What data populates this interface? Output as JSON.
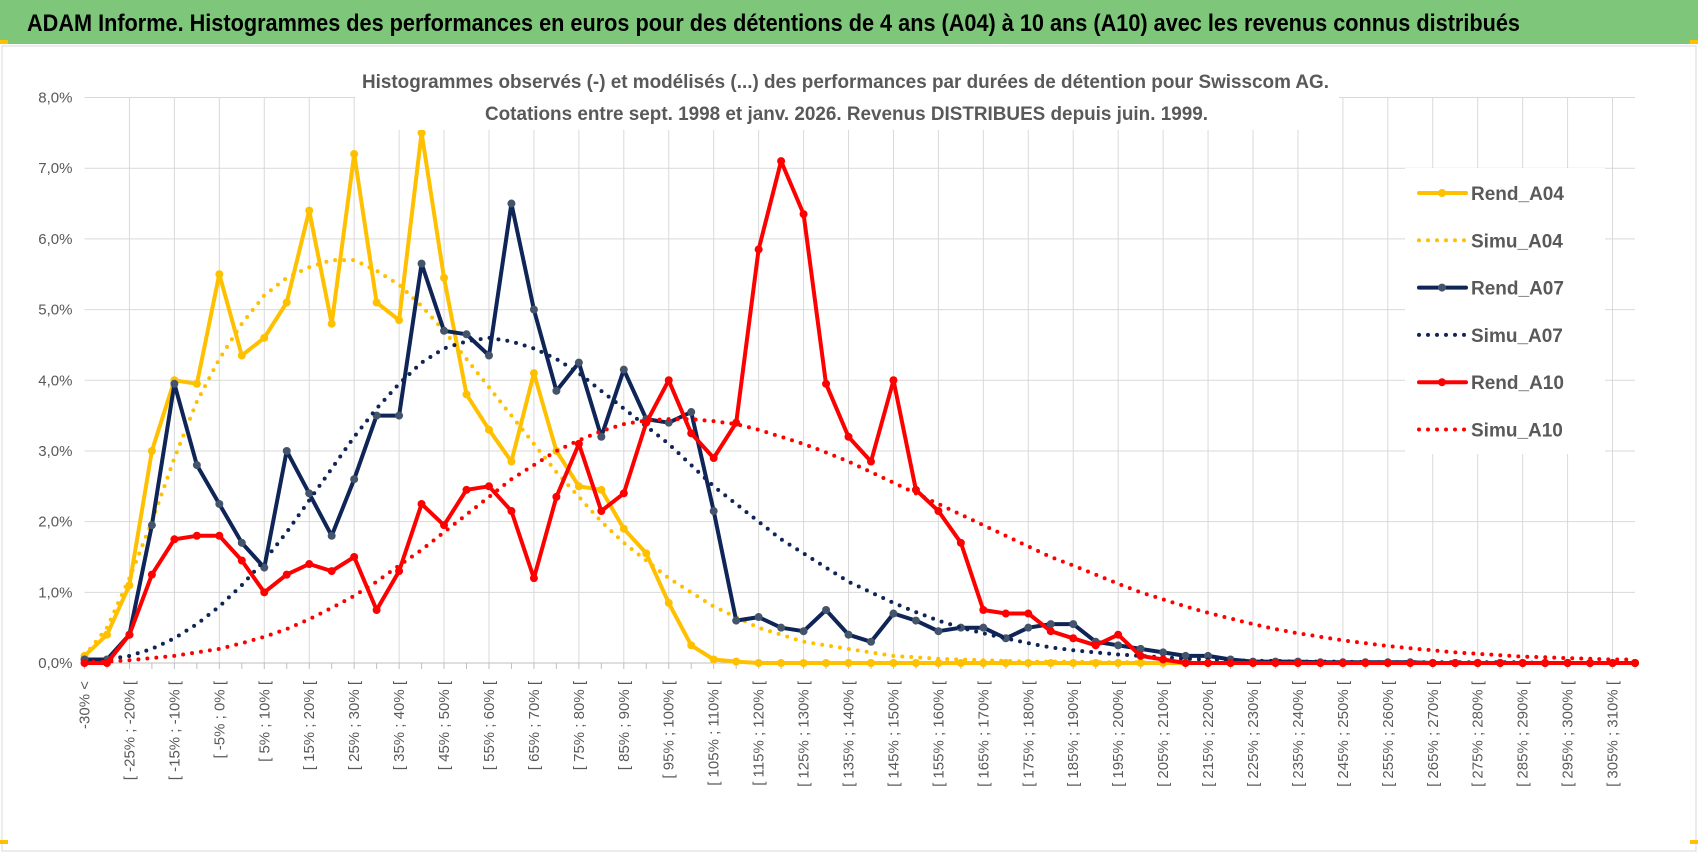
{
  "header": {
    "title": "ADAM Informe. Histogrammes des performances en euros pour des détentions de 4 ans (A04) à 10 ans (A10) avec les revenus connus distribués"
  },
  "chart_data": {
    "type": "line",
    "title": "Histogrammes observés (-) et modélisés (...) des performances par durées de détention pour Swisscom AG.",
    "subtitle": "Cotations entre sept. 1998 et janv. 2026. Revenus DISTRIBUES depuis juin. 1999.",
    "categories": [
      "-30% <",
      null,
      "[ -25% ; -20% [",
      null,
      "[ -15% ; -10% [",
      null,
      "[ -5% ; 0% [",
      null,
      "[ 5% ; 10% [",
      null,
      "[ 15% ; 20% [",
      null,
      "[ 25% ; 30% [",
      null,
      "[ 35% ; 40% [",
      null,
      "[ 45% ; 50% [",
      null,
      "[ 55% ; 60% [",
      null,
      "[ 65% ; 70% [",
      null,
      "[ 75% ; 80% [",
      null,
      "[ 85% ; 90% [",
      null,
      "[ 95% ; 100% [",
      null,
      "[ 105% ; 110% [",
      null,
      "[ 115% ; 120% [",
      null,
      "[ 125% ; 130% [",
      null,
      "[ 135% ; 140% [",
      null,
      "[ 145% ; 150% [",
      null,
      "[ 155% ; 160% [",
      null,
      "[ 165% ; 170% [",
      null,
      "[ 175% ; 180% [",
      null,
      "[ 185% ; 190% [",
      null,
      "[ 195% ; 200% [",
      null,
      "[ 205% ; 210% [",
      null,
      "[ 215% ; 220% [",
      null,
      "[ 225% ; 230% [",
      null,
      "[ 235% ; 240% [",
      null,
      "[ 245% ; 250% [",
      null,
      "[ 255% ; 260% [",
      null,
      "[ 265% ; 270% [",
      null,
      "[ 275% ; 280% [",
      null,
      "[ 285% ; 290% [",
      null,
      "[ 295% ; 300% [",
      null,
      "[ 305% ; 310% [",
      null
    ],
    "ylim": [
      0,
      8
    ],
    "yticks": [
      {
        "value": 0,
        "label": "0,0%"
      },
      {
        "value": 1,
        "label": "1,0%"
      },
      {
        "value": 2,
        "label": "2,0%"
      },
      {
        "value": 3,
        "label": "3,0%"
      },
      {
        "value": 4,
        "label": "4,0%"
      },
      {
        "value": 5,
        "label": "5,0%"
      },
      {
        "value": 6,
        "label": "6,0%"
      },
      {
        "value": 7,
        "label": "7,0%"
      },
      {
        "value": 8,
        "label": "8,0%"
      }
    ],
    "grid": true,
    "legend": "right",
    "series": [
      {
        "name": "Rend_A04",
        "color": "#ffc000",
        "style": "solid",
        "values": [
          0.1,
          0.4,
          1.1,
          3.0,
          4.0,
          3.95,
          5.5,
          4.35,
          4.6,
          5.1,
          6.4,
          4.8,
          7.2,
          5.1,
          4.85,
          7.5,
          5.45,
          3.8,
          3.3,
          2.85,
          4.1,
          3.0,
          2.5,
          2.45,
          1.9,
          1.55,
          0.85,
          0.25,
          0.05,
          0.02,
          0,
          0,
          0,
          0,
          0,
          0,
          0,
          0,
          0,
          0,
          0,
          0,
          0,
          0,
          0,
          0,
          0,
          0,
          0,
          0,
          0,
          0,
          0,
          0,
          0,
          0,
          0,
          0,
          0,
          0,
          0,
          0,
          0,
          0,
          0,
          0,
          0,
          0,
          0,
          0
        ]
      },
      {
        "name": "Simu_A04",
        "color": "#ffc000",
        "style": "dotted",
        "values": [
          0.1,
          0.5,
          1.2,
          2.0,
          2.9,
          3.7,
          4.3,
          4.8,
          5.2,
          5.45,
          5.6,
          5.7,
          5.7,
          5.55,
          5.35,
          5.05,
          4.7,
          4.3,
          3.9,
          3.5,
          3.1,
          2.7,
          2.35,
          2.0,
          1.7,
          1.45,
          1.2,
          1.0,
          0.8,
          0.65,
          0.5,
          0.4,
          0.3,
          0.25,
          0.2,
          0.15,
          0.1,
          0.08,
          0.06,
          0.05,
          0.04,
          0.03,
          0.02,
          0.02,
          0.02,
          0.01,
          0.01,
          0.01,
          0,
          0,
          0,
          0,
          0,
          0,
          0,
          0,
          0,
          0,
          0,
          0,
          0,
          0,
          0,
          0,
          0,
          0,
          0,
          0,
          0,
          0
        ]
      },
      {
        "name": "Rend_A07",
        "color": "#0f2557",
        "marker": "#44546a",
        "style": "solid",
        "values": [
          0.05,
          0.05,
          0.4,
          1.95,
          3.95,
          2.8,
          2.25,
          1.7,
          1.35,
          3.0,
          2.4,
          1.8,
          2.6,
          3.5,
          3.5,
          5.65,
          4.7,
          4.65,
          4.35,
          6.5,
          5.0,
          3.85,
          4.25,
          3.2,
          4.15,
          3.45,
          3.4,
          3.55,
          2.15,
          0.6,
          0.65,
          0.5,
          0.45,
          0.75,
          0.4,
          0.3,
          0.7,
          0.6,
          0.45,
          0.5,
          0.5,
          0.35,
          0.5,
          0.55,
          0.55,
          0.3,
          0.25,
          0.2,
          0.15,
          0.1,
          0.1,
          0.05,
          0.02,
          0.02,
          0.02,
          0.01,
          0.01,
          0.01,
          0.01,
          0.01,
          0,
          0,
          0,
          0,
          0,
          0,
          0,
          0,
          0,
          0
        ]
      },
      {
        "name": "Simu_A07",
        "color": "#0f2557",
        "style": "dotted",
        "values": [
          0.02,
          0.05,
          0.1,
          0.2,
          0.35,
          0.55,
          0.8,
          1.1,
          1.45,
          1.85,
          2.3,
          2.75,
          3.2,
          3.6,
          3.95,
          4.25,
          4.45,
          4.55,
          4.6,
          4.55,
          4.45,
          4.3,
          4.1,
          3.85,
          3.6,
          3.35,
          3.1,
          2.8,
          2.5,
          2.25,
          2.0,
          1.75,
          1.55,
          1.35,
          1.15,
          1.0,
          0.85,
          0.72,
          0.6,
          0.5,
          0.42,
          0.35,
          0.28,
          0.22,
          0.18,
          0.15,
          0.12,
          0.1,
          0.08,
          0.06,
          0.05,
          0.04,
          0.03,
          0.03,
          0.02,
          0.02,
          0.02,
          0.01,
          0.01,
          0.01,
          0.01,
          0.01,
          0.01,
          0.01,
          0.01,
          0,
          0,
          0,
          0,
          0
        ]
      },
      {
        "name": "Rend_A10",
        "color": "#ff0000",
        "style": "solid",
        "values": [
          0,
          0,
          0.4,
          1.25,
          1.75,
          1.8,
          1.8,
          1.45,
          1.0,
          1.25,
          1.4,
          1.3,
          1.5,
          0.75,
          1.3,
          2.25,
          1.95,
          2.45,
          2.5,
          2.15,
          1.2,
          2.35,
          3.1,
          2.15,
          2.4,
          3.4,
          4.0,
          3.25,
          2.9,
          3.4,
          5.85,
          7.1,
          6.35,
          3.95,
          3.2,
          2.85,
          4.0,
          2.45,
          2.15,
          1.7,
          0.75,
          0.7,
          0.7,
          0.45,
          0.35,
          0.25,
          0.4,
          0.1,
          0.05,
          0,
          0,
          0,
          0,
          0,
          0,
          0,
          0,
          0,
          0,
          0,
          0,
          0,
          0,
          0,
          0,
          0,
          0,
          0,
          0,
          0
        ]
      },
      {
        "name": "Simu_A10",
        "color": "#ff0000",
        "style": "dotted",
        "values": [
          0.01,
          0.02,
          0.04,
          0.07,
          0.1,
          0.15,
          0.2,
          0.28,
          0.37,
          0.48,
          0.62,
          0.78,
          0.95,
          1.15,
          1.38,
          1.6,
          1.85,
          2.1,
          2.35,
          2.6,
          2.8,
          3.0,
          3.15,
          3.28,
          3.38,
          3.43,
          3.45,
          3.45,
          3.42,
          3.38,
          3.3,
          3.2,
          3.1,
          2.98,
          2.85,
          2.7,
          2.55,
          2.4,
          2.25,
          2.1,
          1.95,
          1.8,
          1.65,
          1.5,
          1.38,
          1.25,
          1.12,
          1.0,
          0.9,
          0.8,
          0.71,
          0.63,
          0.55,
          0.48,
          0.42,
          0.37,
          0.32,
          0.28,
          0.24,
          0.21,
          0.18,
          0.15,
          0.13,
          0.11,
          0.09,
          0.08,
          0.07,
          0.06,
          0.05,
          0.05
        ]
      }
    ]
  }
}
